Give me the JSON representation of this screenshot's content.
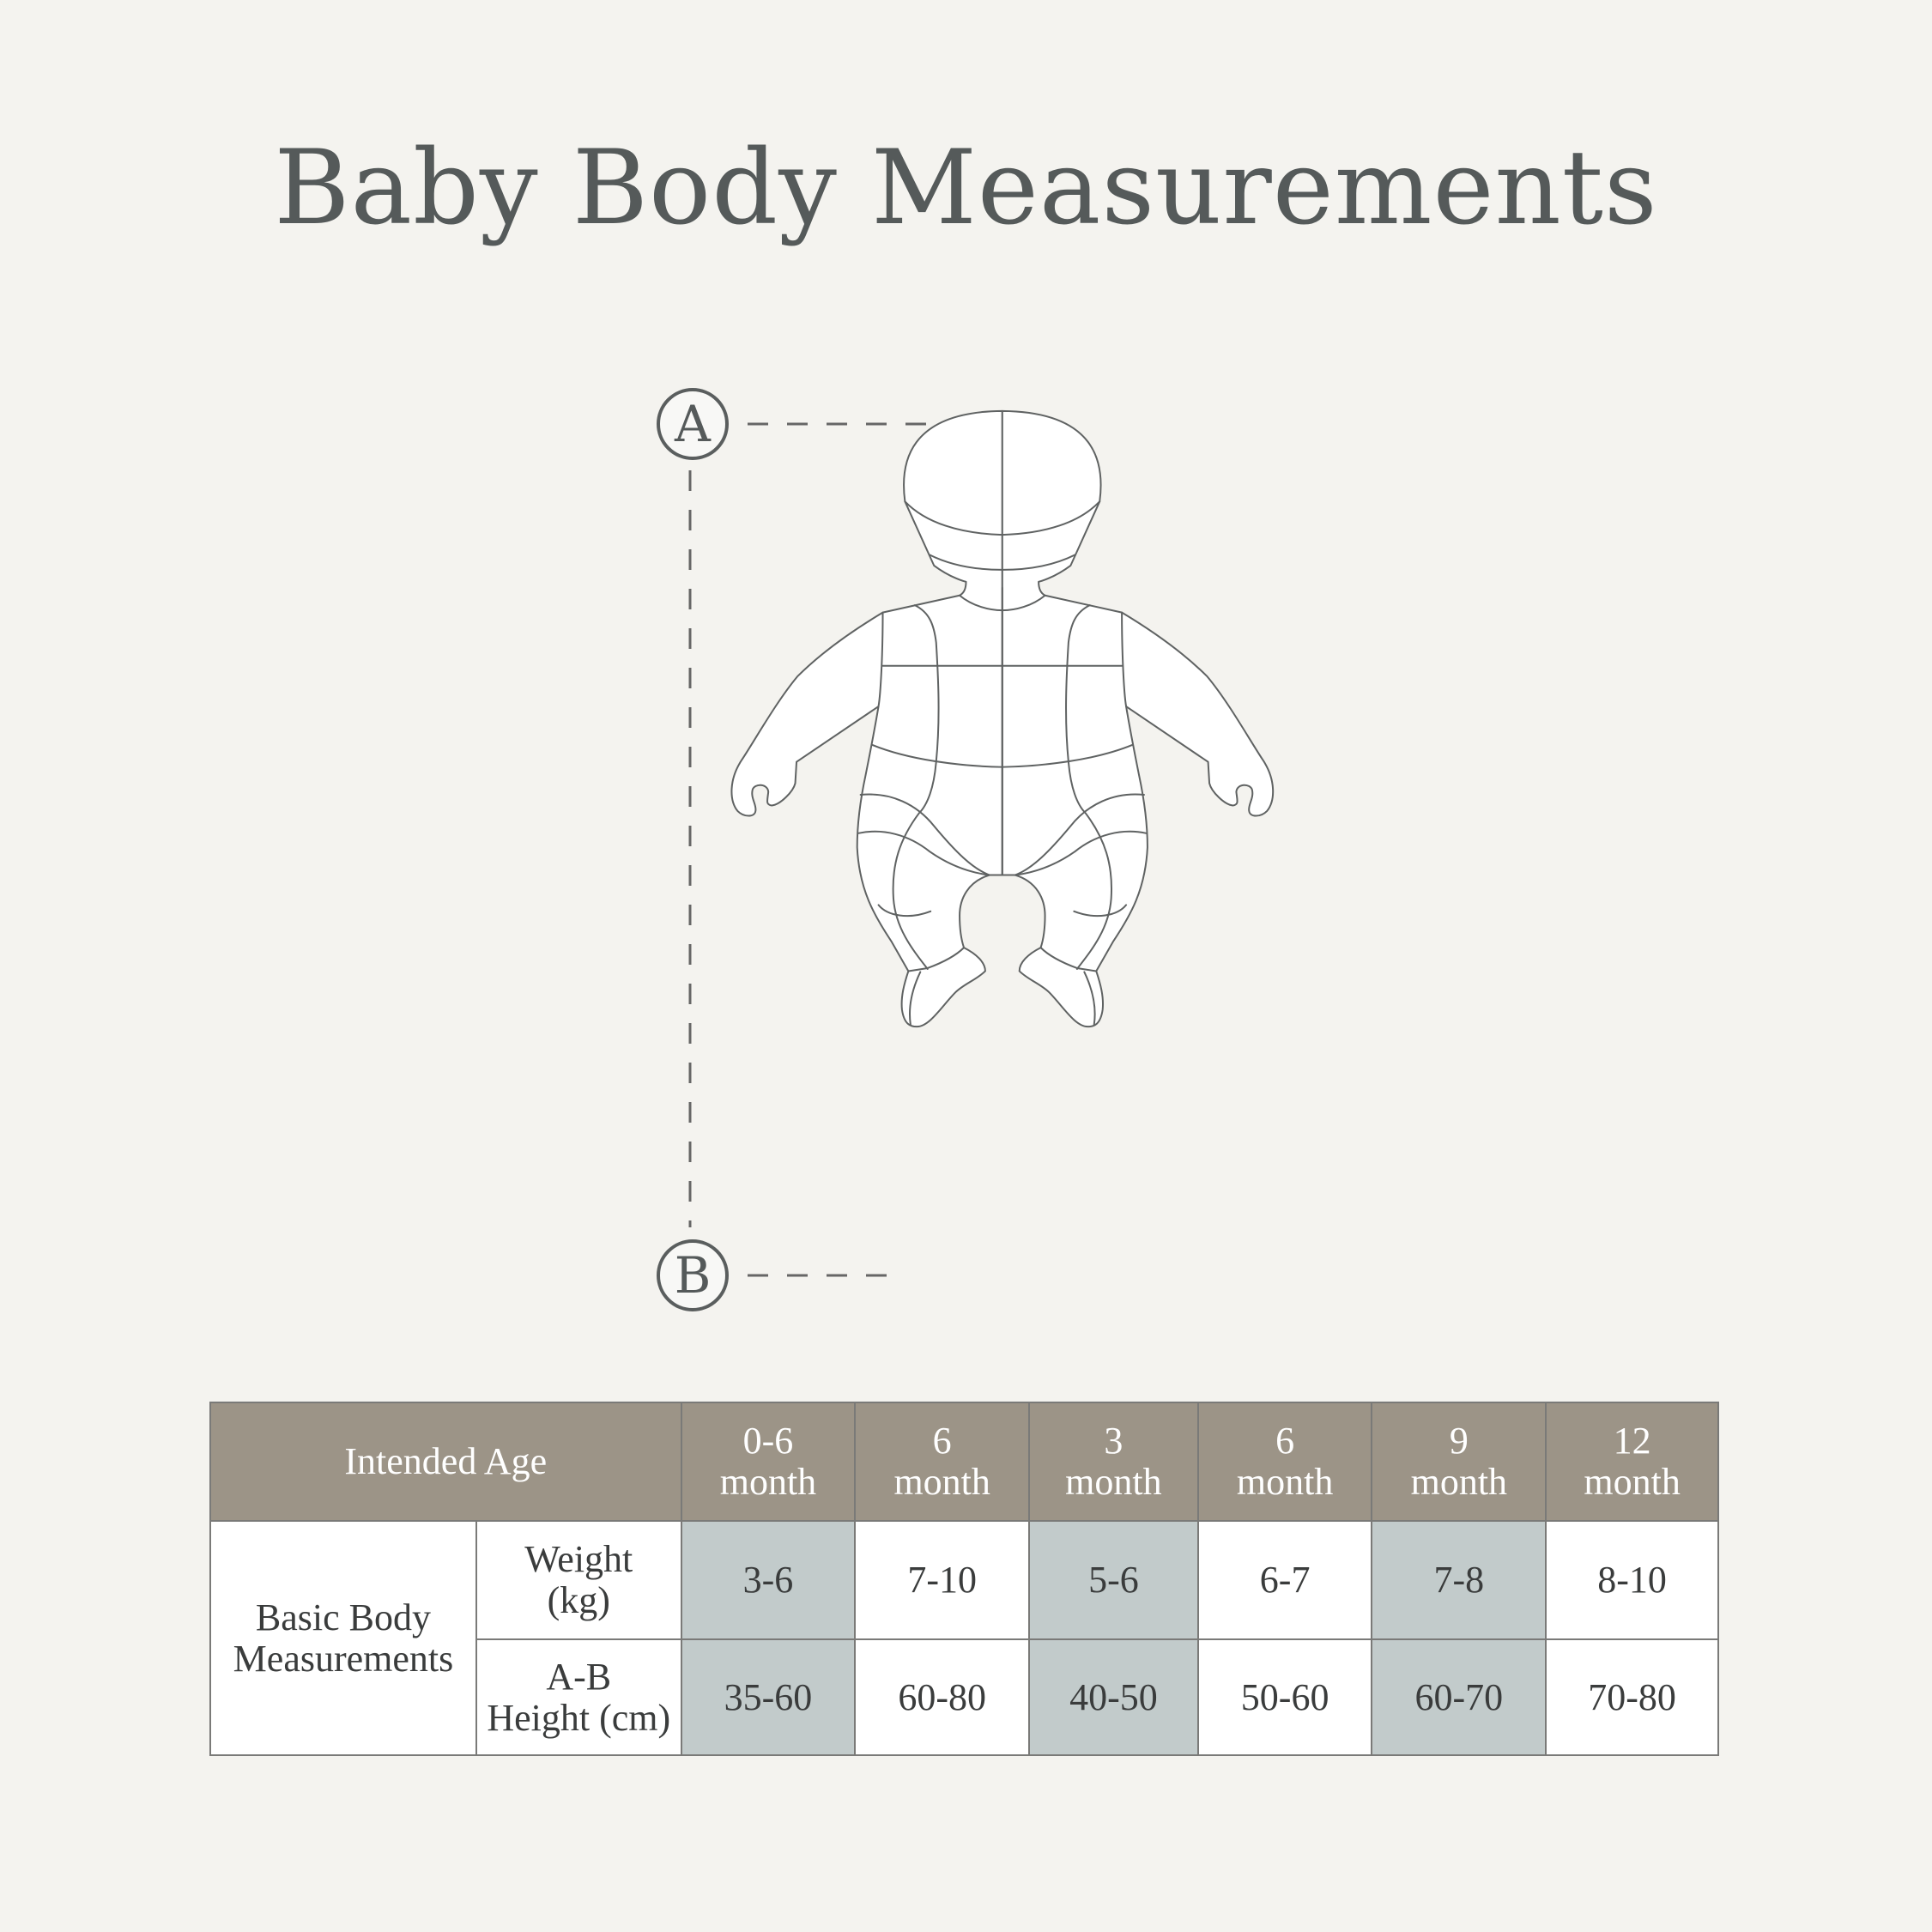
{
  "title": "Baby Body Measurements",
  "figure": {
    "marker_top": "A",
    "marker_bottom": "B"
  },
  "table": {
    "header_label": "Intended Age",
    "ages": [
      {
        "line1": "0-6",
        "line2": "month"
      },
      {
        "line1": "6",
        "line2": "month"
      },
      {
        "line1": "3",
        "line2": "month"
      },
      {
        "line1": "6",
        "line2": "month"
      },
      {
        "line1": "9",
        "line2": "month"
      },
      {
        "line1": "12",
        "line2": "month"
      }
    ],
    "group_label": "Basic Body Measurements",
    "rows": [
      {
        "label_line1": "Weight",
        "label_line2": "(kg)",
        "values": [
          "3-6",
          "7-10",
          "5-6",
          "6-7",
          "7-8",
          "8-10"
        ]
      },
      {
        "label_line1": "A-B",
        "label_line2": "Height (cm)",
        "values": [
          "35-60",
          "60-80",
          "40-50",
          "50-60",
          "60-70",
          "70-80"
        ]
      }
    ],
    "colors": {
      "header": "#9c9487",
      "shaded": "#c2cbcb",
      "background": "#f4f3ef"
    }
  }
}
